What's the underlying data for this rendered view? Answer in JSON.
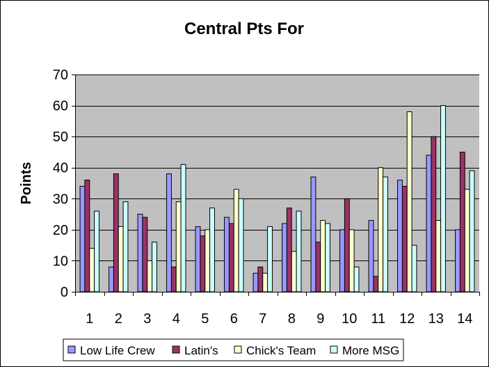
{
  "chart_data": {
    "type": "bar",
    "title": "Central Pts For",
    "xlabel": "",
    "ylabel": "Points",
    "ylim": [
      0,
      70
    ],
    "yticks": [
      0,
      10,
      20,
      30,
      40,
      50,
      60,
      70
    ],
    "grid": true,
    "legend_position": "bottom",
    "categories": [
      "1",
      "2",
      "3",
      "4",
      "5",
      "6",
      "7",
      "8",
      "9",
      "10",
      "11",
      "12",
      "13",
      "14"
    ],
    "series": [
      {
        "name": "Low Life Crew",
        "color": "#9999ff",
        "values": [
          34,
          8,
          25,
          38,
          21,
          24,
          6,
          22,
          37,
          20,
          23,
          36,
          44,
          20
        ]
      },
      {
        "name": "Latin's",
        "color": "#993366",
        "values": [
          36,
          38,
          24,
          8,
          18,
          22,
          8,
          27,
          16,
          30,
          5,
          34,
          50,
          45
        ]
      },
      {
        "name": "Chick's Team",
        "color": "#ffffcc",
        "values": [
          14,
          21,
          10,
          29,
          20,
          33,
          6,
          13,
          23,
          20,
          40,
          58,
          23,
          33
        ]
      },
      {
        "name": "More MSG",
        "color": "#ccffff",
        "values": [
          26,
          29,
          16,
          41,
          27,
          30,
          21,
          26,
          22,
          8,
          37,
          15,
          60,
          39
        ]
      }
    ],
    "plot_background": "#c0c0c0"
  }
}
